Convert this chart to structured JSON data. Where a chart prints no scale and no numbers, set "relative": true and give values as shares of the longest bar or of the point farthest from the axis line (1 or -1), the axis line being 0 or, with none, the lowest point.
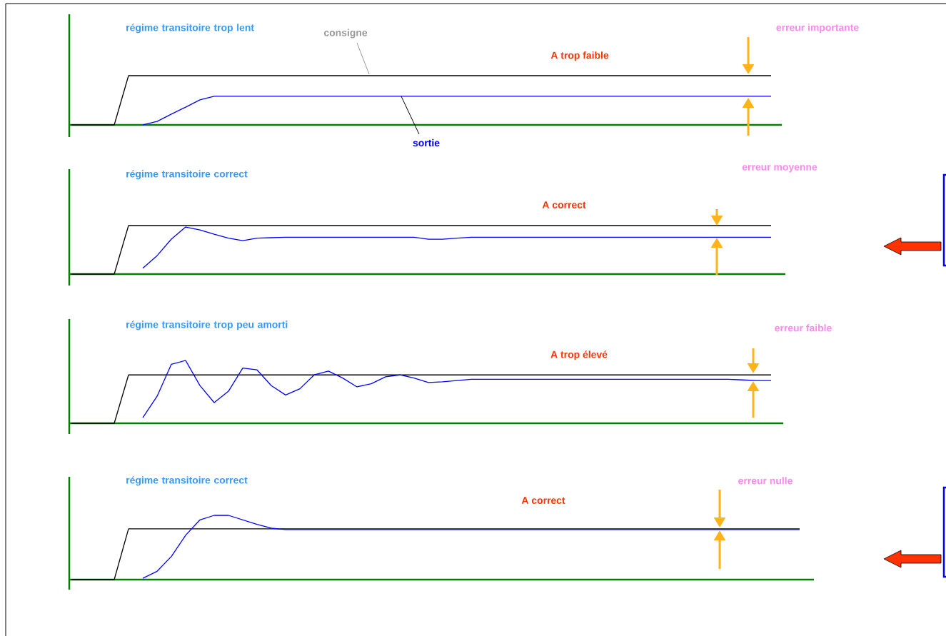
{
  "chart_data": [
    {
      "type": "line",
      "relative": true,
      "title": "régime transitoire trop lent",
      "annotations": [
        "A trop faible",
        "erreur importante"
      ],
      "categories": [
        null,
        null,
        null,
        null,
        null,
        null,
        null,
        null,
        null,
        null,
        null,
        null,
        null,
        null,
        null,
        null,
        null,
        null,
        null,
        null,
        null,
        null,
        null,
        null,
        null,
        null,
        null,
        null,
        null,
        null,
        null,
        null,
        null,
        null,
        null,
        null,
        null,
        null,
        null,
        null,
        null,
        null,
        null,
        null,
        null,
        null,
        null,
        null,
        null,
        null
      ],
      "series": [
        {
          "name": "consigne",
          "color": "#000000",
          "values": [
            0,
            0,
            0,
            0,
            1,
            1,
            1,
            1,
            1,
            1,
            1,
            1,
            1,
            1,
            1,
            1,
            1,
            1,
            1,
            1,
            1,
            1,
            1,
            1,
            1,
            1,
            1,
            1,
            1,
            1,
            1,
            1,
            1,
            1,
            1,
            1,
            1,
            1,
            1,
            1,
            1,
            1,
            1,
            1,
            1,
            1,
            1,
            1,
            1,
            1
          ]
        },
        {
          "name": "sortie",
          "color": "#0000ff",
          "values": [
            null,
            null,
            null,
            null,
            null,
            0,
            0.07,
            0.22,
            0.36,
            0.51,
            0.58,
            0.58,
            0.58,
            0.58,
            0.58,
            0.58,
            0.58,
            0.58,
            0.58,
            0.58,
            0.58,
            0.58,
            0.58,
            0.58,
            0.58,
            0.58,
            0.58,
            0.58,
            0.58,
            0.58,
            0.58,
            0.58,
            0.58,
            0.58,
            0.58,
            0.58,
            0.58,
            0.58,
            0.58,
            0.58,
            0.58,
            0.58,
            0.58,
            0.58,
            0.58,
            0.58,
            0.58,
            0.58,
            0.58,
            0.58
          ]
        }
      ]
    },
    {
      "type": "line",
      "relative": true,
      "title": "régime transitoire correct",
      "annotations": [
        "A correct",
        "erreur moyenne"
      ],
      "categories": [
        null,
        null,
        null,
        null,
        null,
        null,
        null,
        null,
        null,
        null,
        null,
        null,
        null,
        null,
        null,
        null,
        null,
        null,
        null,
        null,
        null,
        null,
        null,
        null,
        null,
        null,
        null,
        null,
        null,
        null,
        null,
        null,
        null,
        null,
        null,
        null,
        null,
        null,
        null,
        null,
        null,
        null,
        null,
        null,
        null,
        null,
        null,
        null,
        null,
        null
      ],
      "series": [
        {
          "color": "#000000",
          "values": [
            0,
            0,
            0,
            0,
            1,
            1,
            1,
            1,
            1,
            1,
            1,
            1,
            1,
            1,
            1,
            1,
            1,
            1,
            1,
            1,
            1,
            1,
            1,
            1,
            1,
            1,
            1,
            1,
            1,
            1,
            1,
            1,
            1,
            1,
            1,
            1,
            1,
            1,
            1,
            1,
            1,
            1,
            1,
            1,
            1,
            1,
            1,
            1,
            1,
            1
          ]
        },
        {
          "color": "#0000ff",
          "values": [
            null,
            null,
            null,
            null,
            null,
            0.12,
            0.38,
            0.72,
            0.97,
            0.91,
            0.82,
            0.74,
            0.69,
            0.74,
            0.75,
            0.76,
            0.76,
            0.76,
            0.76,
            0.76,
            0.76,
            0.76,
            0.76,
            0.76,
            0.76,
            0.72,
            0.72,
            0.74,
            0.76,
            0.76,
            0.76,
            0.76,
            0.76,
            0.76,
            0.76,
            0.76,
            0.76,
            0.76,
            0.76,
            0.76,
            0.76,
            0.76,
            0.76,
            0.76,
            0.76,
            0.76,
            0.76,
            0.76,
            0.76,
            0.76
          ]
        }
      ]
    },
    {
      "type": "line",
      "relative": true,
      "title": "régime transitoire trop peu amorti",
      "annotations": [
        "A trop élevé",
        "erreur faible"
      ],
      "categories": [
        null,
        null,
        null,
        null,
        null,
        null,
        null,
        null,
        null,
        null,
        null,
        null,
        null,
        null,
        null,
        null,
        null,
        null,
        null,
        null,
        null,
        null,
        null,
        null,
        null,
        null,
        null,
        null,
        null,
        null,
        null,
        null,
        null,
        null,
        null,
        null,
        null,
        null,
        null,
        null,
        null,
        null,
        null,
        null,
        null,
        null,
        null,
        null,
        null,
        null
      ],
      "series": [
        {
          "color": "#000000",
          "values": [
            0,
            0,
            0,
            0,
            0.77,
            0.77,
            0.77,
            0.77,
            0.77,
            0.77,
            0.77,
            0.77,
            0.77,
            0.77,
            0.77,
            0.77,
            0.77,
            0.77,
            0.77,
            0.77,
            0.77,
            0.77,
            0.77,
            0.77,
            0.77,
            0.77,
            0.77,
            0.77,
            0.77,
            0.77,
            0.77,
            0.77,
            0.77,
            0.77,
            0.77,
            0.77,
            0.77,
            0.77,
            0.77,
            0.77,
            0.77,
            0.77,
            0.77,
            0.77,
            0.77,
            0.77,
            0.77,
            0.77,
            0.77,
            0.77
          ]
        },
        {
          "color": "#0000ff",
          "values": [
            null,
            null,
            null,
            null,
            null,
            0.09,
            0.43,
            0.94,
            1.0,
            0.6,
            0.33,
            0.51,
            0.88,
            0.85,
            0.6,
            0.45,
            0.55,
            0.77,
            0.83,
            0.72,
            0.58,
            0.63,
            0.74,
            0.77,
            0.72,
            0.65,
            0.66,
            0.68,
            0.7,
            0.7,
            0.7,
            0.7,
            0.7,
            0.7,
            0.7,
            0.7,
            0.7,
            0.7,
            0.7,
            0.7,
            0.7,
            0.7,
            0.7,
            0.7,
            0.7,
            0.7,
            0.7,
            0.69,
            0.68,
            0.68
          ]
        }
      ]
    },
    {
      "type": "line",
      "relative": true,
      "title": "régime transitoire correct",
      "annotations": [
        "A correct",
        "erreur nulle"
      ],
      "categories": [
        null,
        null,
        null,
        null,
        null,
        null,
        null,
        null,
        null,
        null,
        null,
        null,
        null,
        null,
        null,
        null,
        null,
        null,
        null,
        null,
        null,
        null,
        null,
        null,
        null,
        null,
        null,
        null,
        null,
        null,
        null,
        null,
        null,
        null,
        null,
        null,
        null,
        null,
        null,
        null,
        null,
        null,
        null,
        null,
        null,
        null,
        null,
        null,
        null,
        null,
        null,
        null
      ],
      "series": [
        {
          "color": "#000000",
          "values": [
            0,
            0,
            0,
            0,
            0.79,
            0.79,
            0.79,
            0.79,
            0.79,
            0.79,
            0.79,
            0.79,
            0.79,
            0.79,
            0.79,
            0.79,
            0.79,
            0.79,
            0.79,
            0.79,
            0.79,
            0.79,
            0.79,
            0.79,
            0.79,
            0.79,
            0.79,
            0.79,
            0.79,
            0.79,
            0.79,
            0.79,
            0.79,
            0.79,
            0.79,
            0.79,
            0.79,
            0.79,
            0.79,
            0.79,
            0.79,
            0.79,
            0.79,
            0.79,
            0.79,
            0.79,
            0.79,
            0.79,
            0.79,
            0.79,
            0.79,
            0.79
          ]
        },
        {
          "color": "#0000ff",
          "values": [
            null,
            null,
            null,
            null,
            null,
            0.02,
            0.13,
            0.36,
            0.69,
            0.93,
            1.0,
            1.0,
            0.93,
            0.86,
            0.8,
            0.78,
            0.78,
            0.78,
            0.78,
            0.78,
            0.78,
            0.78,
            0.78,
            0.78,
            0.78,
            0.78,
            0.78,
            0.78,
            0.78,
            0.78,
            0.78,
            0.78,
            0.78,
            0.78,
            0.78,
            0.78,
            0.78,
            0.78,
            0.78,
            0.78,
            0.78,
            0.78,
            0.78,
            0.78,
            0.78,
            0.78,
            0.78,
            0.78,
            0.78,
            0.78,
            0.78,
            0.78
          ]
        }
      ]
    }
  ]
}
